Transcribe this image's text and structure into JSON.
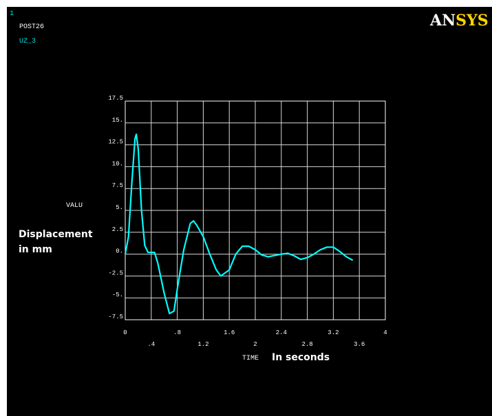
{
  "header": {
    "window_number": "1",
    "processor": "POST26",
    "variable": "UZ_3",
    "logo": "ANSYS"
  },
  "annotations": {
    "y_note_line1": "Displacement",
    "y_note_line2": "in mm",
    "x_note": "In seconds"
  },
  "chart_data": {
    "type": "line",
    "xlabel": "TIME",
    "ylabel": "VALU",
    "xlim": [
      0,
      4
    ],
    "ylim": [
      -7.5,
      17.5
    ],
    "xticks": [
      0,
      {
        "value": 0.4,
        "label": ".4"
      },
      {
        "value": 0.8,
        "label": ".8"
      },
      1.2,
      1.6,
      2,
      2.4,
      2.8,
      3.2,
      3.6,
      4
    ],
    "yticks": [
      {
        "value": -7.5,
        "label": "-7.5"
      },
      {
        "value": -5,
        "label": "-5."
      },
      {
        "value": -2.5,
        "label": "-2.5"
      },
      {
        "value": 0,
        "label": "0."
      },
      2.5,
      {
        "value": 5,
        "label": "5."
      },
      7.5,
      {
        "value": 10,
        "label": "10."
      },
      12.5,
      {
        "value": 15,
        "label": "15."
      },
      17.5
    ],
    "grid": true,
    "x": [
      0,
      0.05,
      0.1,
      0.15,
      0.17,
      0.2,
      0.25,
      0.3,
      0.35,
      0.45,
      0.5,
      0.6,
      0.68,
      0.75,
      0.8,
      0.9,
      1.0,
      1.05,
      1.1,
      1.2,
      1.3,
      1.4,
      1.47,
      1.6,
      1.7,
      1.8,
      1.9,
      2.0,
      2.1,
      2.2,
      2.4,
      2.5,
      2.6,
      2.7,
      2.8,
      2.9,
      3.0,
      3.1,
      3.2,
      3.3,
      3.4,
      3.5
    ],
    "series": [
      {
        "name": "UZ_3",
        "color": "#00ffff",
        "values": [
          0,
          2,
          8,
          13.2,
          13.7,
          12,
          5,
          1,
          0.2,
          0.2,
          -1,
          -4.5,
          -6.8,
          -6.5,
          -4,
          0.5,
          3.5,
          3.8,
          3.3,
          2,
          0,
          -1.8,
          -2.5,
          -1.8,
          0,
          0.9,
          0.9,
          0.5,
          -0.1,
          -0.3,
          0,
          0.1,
          -0.2,
          -0.6,
          -0.4,
          0,
          0.5,
          0.8,
          0.8,
          0.3,
          -0.3,
          -0.7
        ]
      }
    ]
  }
}
